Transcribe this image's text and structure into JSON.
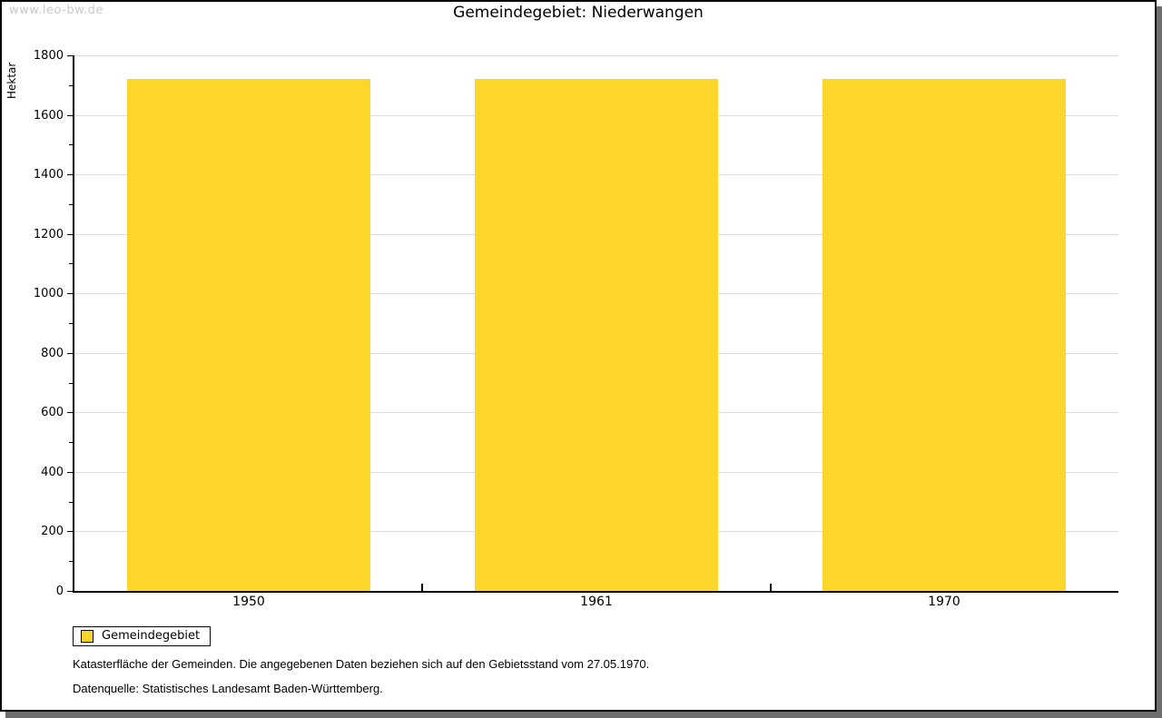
{
  "watermark": "www.leo-bw.de",
  "title": "Gemeindegebiet: Niederwangen",
  "chart_data": {
    "type": "bar",
    "title": "Gemeindegebiet: Niederwangen",
    "categories": [
      "1950",
      "1961",
      "1970"
    ],
    "series": [
      {
        "name": "Gemeindegebiet",
        "values": [
          1720,
          1720,
          1720
        ]
      }
    ],
    "ylabel": "Hektar",
    "xlabel": "",
    "ylim": [
      0,
      1800
    ],
    "ytick_major_step": 200,
    "ytick_minor_step": 100,
    "grid": "horizontal-major",
    "legend_position": "bottom-left",
    "bar_color": "#FCD62B",
    "gridline_color": "#DCDCDC",
    "axis_color": "#000000"
  },
  "legend": {
    "items": [
      {
        "label": "Gemeindegebiet",
        "color": "#FCD62B"
      }
    ]
  },
  "footnotes": [
    "Katasterfläche der Gemeinden. Die angegebenen Daten beziehen sich auf den Gebietsstand vom 27.05.1970.",
    "Datenquelle: Statistisches Landesamt Baden-Württemberg."
  ]
}
